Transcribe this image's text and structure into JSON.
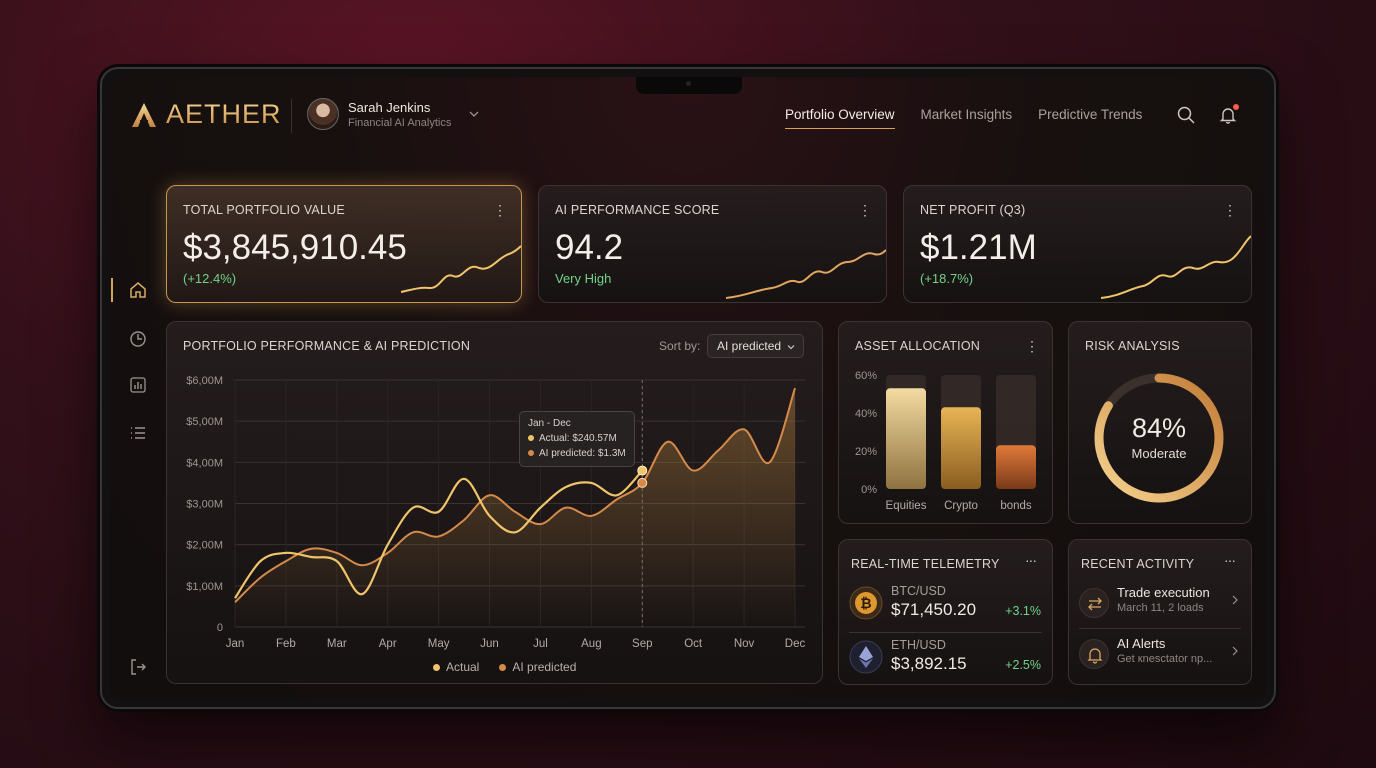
{
  "brand": {
    "name": "AETHER"
  },
  "user": {
    "name": "Sarah Jenkins",
    "role": "Financial AI Analytics"
  },
  "nav": [
    {
      "label": "Portfolio Overview",
      "active": true
    },
    {
      "label": "Market Insights",
      "active": false
    },
    {
      "label": "Predictive Trends",
      "active": false
    }
  ],
  "header_icons": [
    "search-icon",
    "bell-icon"
  ],
  "sidebar": [
    "home-icon",
    "clock-icon",
    "bar-chart-icon",
    "list-icon",
    "logout-icon"
  ],
  "kpis": [
    {
      "title": "TOTAL PORTFOLIO VALUE",
      "value": "$3,845,910.45",
      "sub": "(+12.4%)",
      "kebab": "⋮"
    },
    {
      "title": "AI PERFORMANCE SCORE",
      "value": "94.2",
      "sub": "Very High",
      "kebab": "⋮"
    },
    {
      "title": "NET PROFIT (Q3)",
      "value": "$1.21M",
      "sub": "(+18.7%)",
      "kebab": "⋮"
    }
  ],
  "performance": {
    "title": "PORTFOLIO PERFORMANCE & AI PREDICTION",
    "sort_label": "Sort by:",
    "sort_value": "AI predicted",
    "tooltip": {
      "range": "Jan - Dec",
      "actual": "Actual: $240.57M",
      "predicted": "AI predicted: $1.3M"
    },
    "legend": [
      "Actual",
      "AI predicted"
    ]
  },
  "chart_data": [
    {
      "type": "line",
      "title": "PORTFOLIO PERFORMANCE & AI PREDICTION",
      "categories": [
        "Jan",
        "Feb",
        "Mar",
        "Apr",
        "May",
        "Jun",
        "Jul",
        "Aug",
        "Sep",
        "Oct",
        "Nov",
        "Dec"
      ],
      "y_ticks": [
        "0",
        "$1,00M",
        "$2,00M",
        "$3,00M",
        "$4,00M",
        "$5,00M",
        "$6,00M"
      ],
      "ylim": [
        0,
        6
      ],
      "series": [
        {
          "name": "Actual",
          "color": "#f0c46a",
          "x": [
            0,
            0.5,
            1,
            1.5,
            2,
            2.5,
            3,
            3.5,
            4,
            4.5,
            5,
            5.5,
            6,
            6.5,
            7,
            7.5,
            8
          ],
          "values": [
            0.7,
            1.6,
            1.8,
            1.7,
            1.6,
            0.8,
            2.0,
            2.9,
            2.8,
            3.6,
            2.7,
            2.3,
            2.9,
            3.4,
            3.5,
            3.2,
            3.8
          ]
        },
        {
          "name": "AI predicted",
          "color": "#d68a4a",
          "x": [
            0,
            0.5,
            1,
            1.5,
            2,
            2.5,
            3,
            3.5,
            4,
            4.5,
            5,
            5.5,
            6,
            6.5,
            7,
            7.5,
            8,
            8.5,
            9,
            9.5,
            10,
            10.5,
            11
          ],
          "values": [
            0.6,
            1.2,
            1.6,
            1.9,
            1.8,
            1.5,
            1.8,
            2.3,
            2.2,
            2.6,
            3.2,
            2.8,
            2.5,
            2.9,
            2.7,
            3.1,
            3.5,
            4.5,
            3.8,
            4.3,
            4.8,
            4.0,
            5.8
          ]
        }
      ],
      "grid": true,
      "legend": "bottom-center"
    },
    {
      "type": "bar",
      "title": "ASSET ALLOCATION",
      "categories": [
        "Equities",
        "Crypto",
        "bonds"
      ],
      "values": [
        53,
        43,
        23
      ],
      "y_ticks": [
        "0%",
        "20%",
        "40%",
        "60%"
      ],
      "ylim": [
        0,
        60
      ]
    }
  ],
  "allocation": {
    "title": "ASSET ALLOCATION",
    "kebab": "⋮"
  },
  "risk": {
    "title": "RISK ANALYSIS",
    "value": "84%",
    "label": "Moderate",
    "fraction": 0.84
  },
  "telemetry": {
    "title": "REAL-TIME TELEMETRY",
    "kebab": "···",
    "rows": [
      {
        "pair": "BTC/USD",
        "price": "$71,450.20",
        "change": "+3.1%",
        "icon": "bitcoin-icon"
      },
      {
        "pair": "ETH/USD",
        "price": "$3,892.15",
        "change": "+2.5%",
        "icon": "ethereum-icon"
      }
    ]
  },
  "activity": {
    "title": "RECENT ACTIVITY",
    "kebab": "···",
    "rows": [
      {
        "title": "Trade execution",
        "sub": "March 11, 2 loads",
        "icon": "swap-icon"
      },
      {
        "title": "AI Alerts",
        "sub": "Get кnesctator np...",
        "icon": "bell-icon"
      }
    ]
  }
}
